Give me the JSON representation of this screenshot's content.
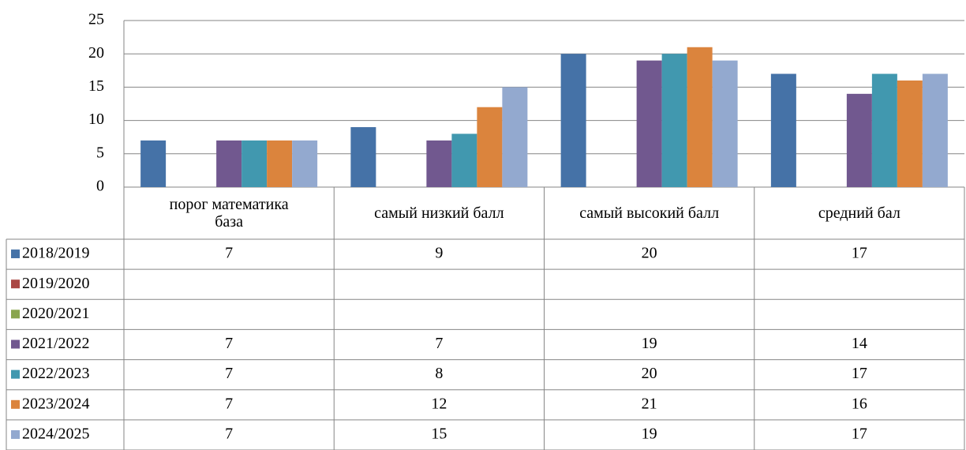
{
  "chart_data": {
    "type": "bar",
    "categories": [
      "порог математика база",
      "самый низкий балл",
      "самый высокий балл",
      "средний бал"
    ],
    "series": [
      {
        "name": "2018/2019",
        "color": "#4572a7",
        "values": [
          7,
          9,
          20,
          17
        ]
      },
      {
        "name": "2019/2020",
        "color": "#aa4643",
        "values": [
          null,
          null,
          null,
          null
        ]
      },
      {
        "name": "2020/2021",
        "color": "#89a54e",
        "values": [
          null,
          null,
          null,
          null
        ]
      },
      {
        "name": "2021/2022",
        "color": "#71588f",
        "values": [
          7,
          7,
          19,
          14
        ]
      },
      {
        "name": "2022/2023",
        "color": "#4198af",
        "values": [
          7,
          8,
          20,
          17
        ]
      },
      {
        "name": "2023/2024",
        "color": "#db843d",
        "values": [
          7,
          12,
          21,
          16
        ]
      },
      {
        "name": "2024/2025",
        "color": "#93a9cf",
        "values": [
          7,
          15,
          19,
          17
        ]
      }
    ],
    "ylim": [
      0,
      25
    ],
    "yticks": [
      0,
      5,
      10,
      15,
      20,
      25
    ],
    "grid": true,
    "legend": "table"
  }
}
